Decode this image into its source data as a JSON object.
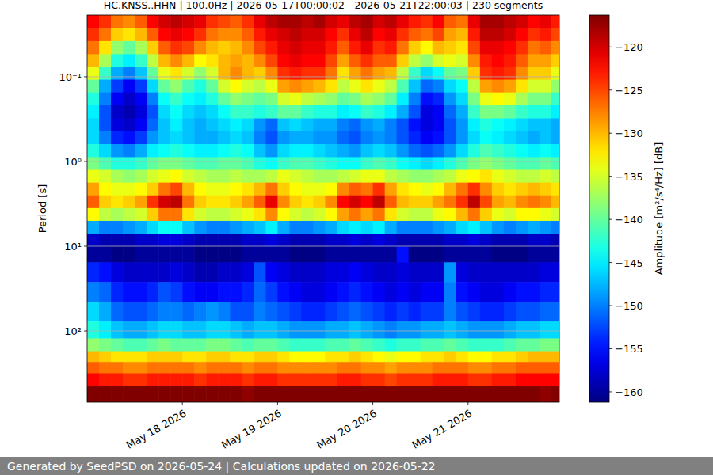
{
  "chart_data": {
    "type": "heatmap",
    "title": "HC.KNSS..HHN | 100.0Hz | 2026-05-17T00:00:02 - 2026-05-21T22:00:03 | 230 segments",
    "y_label": "Period [s]",
    "footer": "Generated by SeedPSD on 2026-05-24 | Calculations updated on 2026-05-22",
    "log": "y",
    "grid": true,
    "xlim": [
      "2026-05-17T00:00",
      "2026-05-21T23:00"
    ],
    "xticks": [
      {
        "value": "2026-05-18T00:00",
        "label": "May 18 2026"
      },
      {
        "value": "2026-05-19T00:00",
        "label": "May 19 2026"
      },
      {
        "value": "2026-05-20T00:00",
        "label": "May 20 2026"
      },
      {
        "value": "2026-05-21T00:00",
        "label": "May 21 2026"
      }
    ],
    "ylim": [
      693,
      0.0187
    ],
    "yticks": [
      {
        "value": 0.1,
        "label": "10⁻¹"
      },
      {
        "value": 1,
        "label": "10⁰"
      },
      {
        "value": 10,
        "label": "10¹"
      },
      {
        "value": 100,
        "label": "10²"
      }
    ],
    "x": [
      "2026-05-17T01:30",
      "2026-05-17T04:30",
      "2026-05-17T07:30",
      "2026-05-17T10:30",
      "2026-05-17T13:30",
      "2026-05-17T16:30",
      "2026-05-17T19:30",
      "2026-05-17T22:30",
      "2026-05-18T01:30",
      "2026-05-18T04:30",
      "2026-05-18T07:30",
      "2026-05-18T10:30",
      "2026-05-18T13:30",
      "2026-05-18T16:30",
      "2026-05-18T19:30",
      "2026-05-18T22:30",
      "2026-05-19T01:30",
      "2026-05-19T04:30",
      "2026-05-19T07:30",
      "2026-05-19T10:30",
      "2026-05-19T13:30",
      "2026-05-19T16:30",
      "2026-05-19T19:30",
      "2026-05-19T22:30",
      "2026-05-20T01:30",
      "2026-05-20T04:30",
      "2026-05-20T07:30",
      "2026-05-20T10:30",
      "2026-05-20T13:30",
      "2026-05-20T16:30",
      "2026-05-20T19:30",
      "2026-05-20T22:30",
      "2026-05-21T01:30",
      "2026-05-21T04:30",
      "2026-05-21T07:30",
      "2026-05-21T10:30",
      "2026-05-21T13:30",
      "2026-05-21T16:30",
      "2026-05-21T19:30",
      "2026-05-21T22:30"
    ],
    "y": [
      0.022,
      0.032,
      0.045,
      0.065,
      0.09,
      0.13,
      0.18,
      0.26,
      0.37,
      0.52,
      0.75,
      1.05,
      1.5,
      2.1,
      3.0,
      4.2,
      6.0,
      8.5,
      12,
      20,
      35,
      60,
      100,
      150,
      200,
      270,
      370,
      550
    ],
    "values": [
      [
        -122,
        -124,
        -127,
        -128,
        -126,
        -122,
        -120,
        -119,
        -120,
        -121,
        -124,
        -125,
        -126,
        -124,
        -121,
        -119,
        -118,
        -118,
        -119,
        -118,
        -120,
        -121,
        -119,
        -118,
        -120,
        -119,
        -121,
        -123,
        -124,
        -122,
        -126,
        -127,
        -121,
        -118,
        -118,
        -119,
        -120,
        -122,
        -121,
        -123
      ],
      [
        -124,
        -127,
        -131,
        -132,
        -130,
        -126,
        -122,
        -121,
        -122,
        -124,
        -127,
        -128,
        -128,
        -126,
        -123,
        -121,
        -120,
        -119,
        -120,
        -120,
        -122,
        -124,
        -121,
        -119,
        -122,
        -121,
        -124,
        -126,
        -127,
        -125,
        -129,
        -130,
        -123,
        -119,
        -119,
        -120,
        -122,
        -124,
        -123,
        -125
      ],
      [
        -127,
        -132,
        -138,
        -140,
        -137,
        -131,
        -126,
        -124,
        -125,
        -128,
        -130,
        -131,
        -130,
        -128,
        -125,
        -123,
        -121,
        -120,
        -121,
        -121,
        -123,
        -126,
        -123,
        -121,
        -124,
        -123,
        -127,
        -131,
        -133,
        -130,
        -131,
        -132,
        -125,
        -121,
        -121,
        -122,
        -124,
        -127,
        -126,
        -128
      ],
      [
        -130,
        -137,
        -143,
        -145,
        -142,
        -136,
        -130,
        -128,
        -130,
        -133,
        -132,
        -130,
        -129,
        -130,
        -128,
        -125,
        -122,
        -121,
        -122,
        -122,
        -125,
        -129,
        -126,
        -124,
        -126,
        -126,
        -131,
        -136,
        -138,
        -135,
        -134,
        -135,
        -128,
        -123,
        -122,
        -123,
        -126,
        -129,
        -129,
        -131
      ],
      [
        -134,
        -142,
        -148,
        -150,
        -147,
        -140,
        -134,
        -132,
        -135,
        -138,
        -135,
        -130,
        -128,
        -130,
        -131,
        -128,
        -124,
        -123,
        -124,
        -124,
        -127,
        -132,
        -129,
        -127,
        -129,
        -130,
        -136,
        -142,
        -146,
        -144,
        -140,
        -139,
        -131,
        -124,
        -123,
        -124,
        -128,
        -131,
        -131,
        -134
      ],
      [
        -140,
        -148,
        -153,
        -156,
        -153,
        -146,
        -140,
        -138,
        -141,
        -143,
        -140,
        -135,
        -133,
        -135,
        -136,
        -134,
        -129,
        -128,
        -129,
        -130,
        -132,
        -136,
        -134,
        -132,
        -134,
        -136,
        -141,
        -147,
        -151,
        -150,
        -146,
        -144,
        -136,
        -129,
        -128,
        -129,
        -132,
        -135,
        -135,
        -138
      ],
      [
        -143,
        -150,
        -156,
        -158,
        -156,
        -150,
        -144,
        -142,
        -144,
        -145,
        -143,
        -140,
        -138,
        -139,
        -140,
        -139,
        -135,
        -134,
        -136,
        -137,
        -138,
        -140,
        -139,
        -137,
        -138,
        -140,
        -145,
        -150,
        -155,
        -154,
        -149,
        -146,
        -139,
        -134,
        -133,
        -134,
        -137,
        -139,
        -139,
        -142
      ],
      [
        -145,
        -152,
        -158,
        -159,
        -157,
        -152,
        -146,
        -144,
        -146,
        -147,
        -146,
        -144,
        -142,
        -142,
        -143,
        -142,
        -140,
        -140,
        -142,
        -143,
        -143,
        -145,
        -144,
        -142,
        -143,
        -145,
        -148,
        -152,
        -157,
        -156,
        -151,
        -148,
        -142,
        -139,
        -139,
        -140,
        -142,
        -143,
        -143,
        -145
      ],
      [
        -146,
        -152,
        -157,
        -158,
        -156,
        -151,
        -147,
        -145,
        -147,
        -148,
        -147,
        -146,
        -145,
        -146,
        -149,
        -151,
        -147,
        -146,
        -147,
        -148,
        -148,
        -150,
        -151,
        -149,
        -148,
        -150,
        -152,
        -155,
        -157,
        -156,
        -152,
        -149,
        -145,
        -143,
        -144,
        -145,
        -146,
        -147,
        -147,
        -148
      ],
      [
        -146,
        -150,
        -154,
        -155,
        -153,
        -149,
        -147,
        -146,
        -147,
        -148,
        -148,
        -147,
        -146,
        -147,
        -150,
        -152,
        -149,
        -148,
        -148,
        -149,
        -149,
        -151,
        -152,
        -150,
        -149,
        -150,
        -152,
        -154,
        -156,
        -155,
        -152,
        -149,
        -146,
        -144,
        -145,
        -146,
        -147,
        -148,
        -147,
        -148
      ],
      [
        -143,
        -146,
        -149,
        -150,
        -148,
        -145,
        -144,
        -143,
        -144,
        -145,
        -145,
        -144,
        -143,
        -144,
        -147,
        -149,
        -146,
        -145,
        -145,
        -146,
        -147,
        -148,
        -149,
        -147,
        -146,
        -147,
        -149,
        -151,
        -152,
        -151,
        -149,
        -146,
        -143,
        -141,
        -142,
        -143,
        -144,
        -145,
        -144,
        -145
      ],
      [
        -139,
        -141,
        -143,
        -143,
        -142,
        -140,
        -139,
        -139,
        -140,
        -141,
        -141,
        -140,
        -140,
        -141,
        -143,
        -144,
        -142,
        -141,
        -141,
        -142,
        -143,
        -144,
        -144,
        -142,
        -141,
        -142,
        -144,
        -145,
        -146,
        -145,
        -143,
        -141,
        -139,
        -138,
        -139,
        -140,
        -141,
        -141,
        -140,
        -141
      ],
      [
        -134,
        -135,
        -137,
        -138,
        -137,
        -135,
        -134,
        -133,
        -135,
        -136,
        -137,
        -137,
        -136,
        -137,
        -137,
        -136,
        -134,
        -135,
        -136,
        -137,
        -137,
        -136,
        -135,
        -134,
        -134,
        -136,
        -137,
        -138,
        -138,
        -137,
        -136,
        -134,
        -133,
        -132,
        -134,
        -135,
        -136,
        -136,
        -135,
        -136
      ],
      [
        -129,
        -133,
        -134,
        -134,
        -133,
        -131,
        -127,
        -125,
        -130,
        -133,
        -134,
        -134,
        -133,
        -132,
        -130,
        -127,
        -131,
        -133,
        -134,
        -134,
        -133,
        -128,
        -126,
        -127,
        -124,
        -129,
        -132,
        -133,
        -134,
        -133,
        -130,
        -127,
        -124,
        -128,
        -131,
        -132,
        -131,
        -130,
        -131,
        -132
      ],
      [
        -126,
        -131,
        -132,
        -131,
        -129,
        -124,
        -120,
        -119,
        -127,
        -131,
        -132,
        -132,
        -131,
        -129,
        -126,
        -121,
        -128,
        -131,
        -132,
        -131,
        -128,
        -122,
        -120,
        -122,
        -119,
        -126,
        -130,
        -131,
        -131,
        -129,
        -127,
        -124,
        -119,
        -125,
        -129,
        -130,
        -128,
        -127,
        -128,
        -130
      ],
      [
        -133,
        -136,
        -137,
        -136,
        -135,
        -131,
        -127,
        -127,
        -132,
        -135,
        -136,
        -136,
        -135,
        -134,
        -132,
        -128,
        -133,
        -135,
        -136,
        -135,
        -133,
        -129,
        -127,
        -129,
        -127,
        -132,
        -135,
        -136,
        -136,
        -134,
        -133,
        -130,
        -127,
        -131,
        -134,
        -135,
        -133,
        -133,
        -134,
        -135
      ],
      [
        -148,
        -150,
        -150,
        -149,
        -148,
        -146,
        -144,
        -144,
        -147,
        -149,
        -150,
        -150,
        -149,
        -148,
        -147,
        -145,
        -148,
        -150,
        -150,
        -149,
        -148,
        -146,
        -145,
        -146,
        -145,
        -148,
        -150,
        -150,
        -150,
        -149,
        -148,
        -146,
        -145,
        -147,
        -149,
        -150,
        -149,
        -148,
        -149,
        -150
      ],
      [
        -158,
        -159,
        -159,
        -159,
        -158,
        -158,
        -157,
        -157,
        -158,
        -159,
        -159,
        -159,
        -159,
        -158,
        -158,
        -157,
        -158,
        -159,
        -159,
        -159,
        -158,
        -158,
        -157,
        -158,
        -157,
        -158,
        -159,
        -159,
        -159,
        -159,
        -158,
        -158,
        -157,
        -158,
        -159,
        -159,
        -159,
        -158,
        -158,
        -159
      ],
      [
        -160,
        -160,
        -161,
        -161,
        -160,
        -160,
        -160,
        -160,
        -160,
        -161,
        -161,
        -161,
        -161,
        -160,
        -160,
        -160,
        -160,
        -161,
        -161,
        -161,
        -160,
        -160,
        -160,
        -160,
        -160,
        -160,
        -155,
        -161,
        -161,
        -161,
        -160,
        -160,
        -160,
        -160,
        -161,
        -161,
        -161,
        -160,
        -160,
        -160
      ],
      [
        -154,
        -155,
        -157,
        -158,
        -158,
        -158,
        -158,
        -157,
        -158,
        -159,
        -159,
        -158,
        -158,
        -157,
        -152,
        -156,
        -157,
        -158,
        -158,
        -158,
        -157,
        -157,
        -156,
        -157,
        -158,
        -158,
        -157,
        -158,
        -158,
        -158,
        -149,
        -157,
        -158,
        -158,
        -158,
        -158,
        -158,
        -158,
        -157,
        -157
      ],
      [
        -150,
        -151,
        -154,
        -155,
        -155,
        -154,
        -152,
        -153,
        -155,
        -156,
        -156,
        -155,
        -155,
        -154,
        -151,
        -153,
        -155,
        -156,
        -157,
        -157,
        -156,
        -155,
        -154,
        -155,
        -156,
        -157,
        -156,
        -157,
        -156,
        -156,
        -150,
        -155,
        -156,
        -157,
        -157,
        -156,
        -155,
        -155,
        -154,
        -154
      ],
      [
        -146,
        -148,
        -151,
        -152,
        -152,
        -151,
        -150,
        -150,
        -151,
        -150,
        -149,
        -150,
        -152,
        -152,
        -150,
        -151,
        -152,
        -153,
        -154,
        -154,
        -153,
        -152,
        -151,
        -152,
        -153,
        -154,
        -153,
        -154,
        -153,
        -153,
        -150,
        -152,
        -153,
        -154,
        -154,
        -153,
        -152,
        -152,
        -151,
        -151
      ],
      [
        -143,
        -145,
        -147,
        -148,
        -148,
        -147,
        -146,
        -146,
        -147,
        -147,
        -146,
        -146,
        -147,
        -148,
        -147,
        -147,
        -148,
        -149,
        -149,
        -149,
        -148,
        -148,
        -147,
        -148,
        -149,
        -150,
        -149,
        -149,
        -148,
        -148,
        -147,
        -148,
        -149,
        -149,
        -149,
        -148,
        -147,
        -147,
        -146,
        -146
      ],
      [
        -138,
        -139,
        -140,
        -141,
        -141,
        -140,
        -139,
        -140,
        -140,
        -140,
        -139,
        -139,
        -140,
        -141,
        -140,
        -140,
        -141,
        -142,
        -142,
        -142,
        -141,
        -141,
        -140,
        -141,
        -142,
        -143,
        -142,
        -142,
        -141,
        -141,
        -140,
        -141,
        -142,
        -142,
        -142,
        -141,
        -140,
        -140,
        -139,
        -139
      ],
      [
        -130,
        -131,
        -132,
        -132,
        -132,
        -131,
        -131,
        -131,
        -132,
        -132,
        -131,
        -131,
        -132,
        -132,
        -131,
        -131,
        -132,
        -133,
        -133,
        -133,
        -132,
        -132,
        -131,
        -132,
        -133,
        -134,
        -133,
        -133,
        -132,
        -132,
        -131,
        -132,
        -133,
        -133,
        -132,
        -132,
        -131,
        -130,
        -130,
        -130
      ],
      [
        -126,
        -127,
        -127,
        -128,
        -128,
        -127,
        -127,
        -127,
        -127,
        -128,
        -127,
        -127,
        -127,
        -128,
        -127,
        -127,
        -128,
        -128,
        -128,
        -128,
        -128,
        -127,
        -127,
        -128,
        -128,
        -129,
        -128,
        -128,
        -128,
        -127,
        -127,
        -127,
        -128,
        -128,
        -127,
        -127,
        -126,
        -126,
        -126,
        -126
      ],
      [
        -122,
        -123,
        -123,
        -124,
        -124,
        -123,
        -123,
        -123,
        -123,
        -124,
        -123,
        -123,
        -123,
        -124,
        -123,
        -123,
        -124,
        -124,
        -124,
        -124,
        -124,
        -123,
        -123,
        -124,
        -124,
        -125,
        -124,
        -124,
        -124,
        -123,
        -123,
        -123,
        -124,
        -124,
        -123,
        -123,
        -122,
        -122,
        -122,
        -122
      ],
      [
        -116,
        -116,
        -116,
        -116,
        -116,
        -116,
        -116,
        -116,
        -116,
        -116,
        -116,
        -116,
        -116,
        -117,
        -116,
        -116,
        -116,
        -116,
        -116,
        -116,
        -116,
        -116,
        -116,
        -116,
        -116,
        -116,
        -116,
        -116,
        -116,
        -116,
        -116,
        -116,
        -116,
        -116,
        -116,
        -116,
        -116,
        -116,
        -117,
        -116
      ]
    ],
    "colorbar": {
      "label": "Amplitude [m²/s⁴/Hz] [dB]",
      "lim": [
        -161.2,
        -116.3
      ],
      "ticks": [
        {
          "value": -120,
          "label": "−120"
        },
        {
          "value": -125,
          "label": "−125"
        },
        {
          "value": -130,
          "label": "−130"
        },
        {
          "value": -135,
          "label": "−135"
        },
        {
          "value": -140,
          "label": "−140"
        },
        {
          "value": -145,
          "label": "−145"
        },
        {
          "value": -150,
          "label": "−150"
        },
        {
          "value": -155,
          "label": "−155"
        },
        {
          "value": -160,
          "label": "−160"
        }
      ]
    }
  }
}
